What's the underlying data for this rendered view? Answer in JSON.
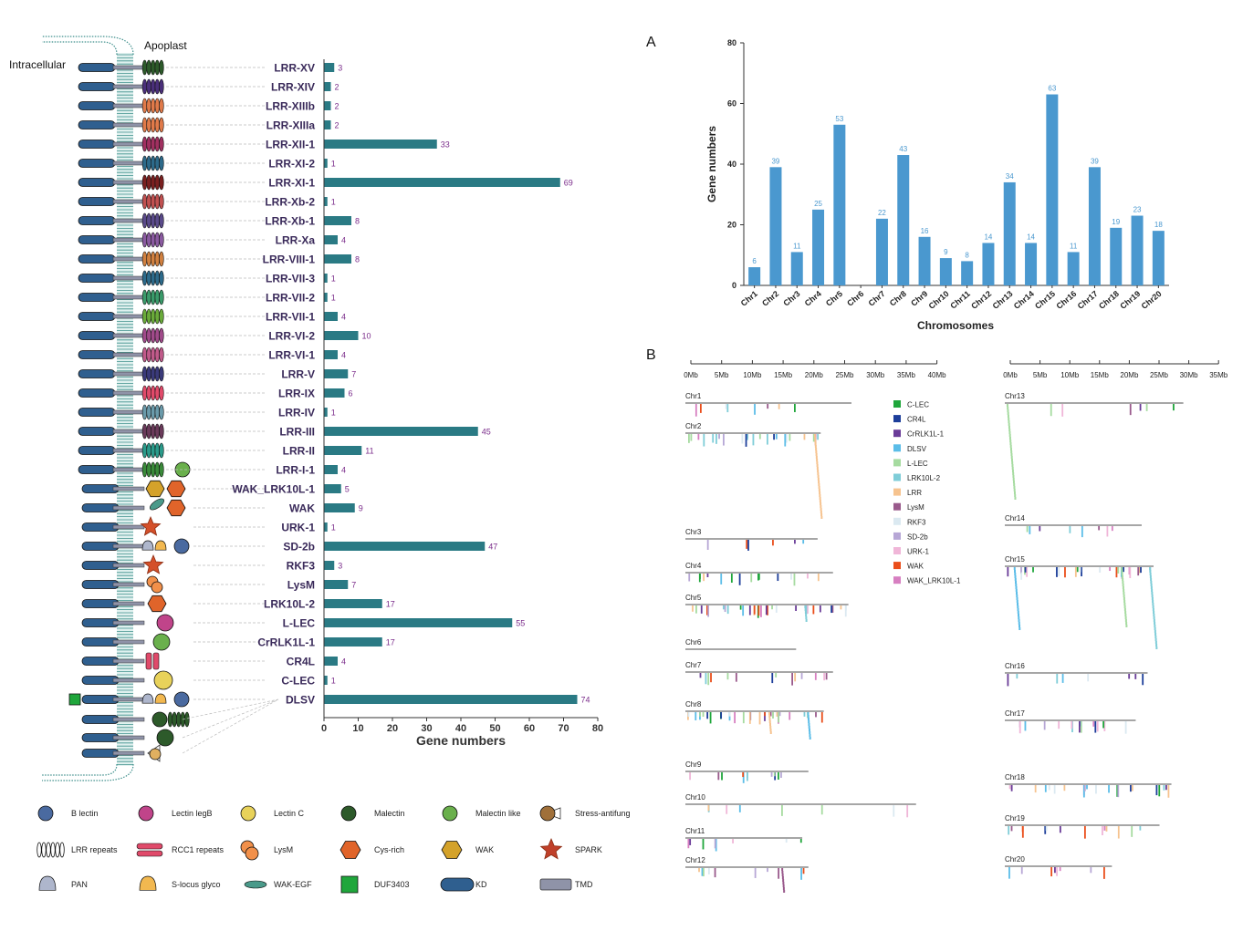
{
  "left_panel": {
    "intracellular_label": "Intracellular",
    "apoplast_label": "Apoplast",
    "bar_color": "#2a7a84",
    "value_color": "#7b2d8b",
    "chart_data": {
      "type": "bar",
      "orientation": "horizontal",
      "categories": [
        "LRR-XV",
        "LRR-XIV",
        "LRR-XIIIb",
        "LRR-XIIIa",
        "LRR-XII-1",
        "LRR-XI-2",
        "LRR-XI-1",
        "LRR-Xb-2",
        "LRR-Xb-1",
        "LRR-Xa",
        "LRR-VIII-1",
        "LRR-VII-3",
        "LRR-VII-2",
        "LRR-VII-1",
        "LRR-VI-2",
        "LRR-VI-1",
        "LRR-V",
        "LRR-IX",
        "LRR-IV",
        "LRR-III",
        "LRR-II",
        "LRR-I-1",
        "WAK_LRK10L-1",
        "WAK",
        "URK-1",
        "SD-2b",
        "RKF3",
        "LysM",
        "LRK10L-2",
        "L-LEC",
        "CrRLK1L-1",
        "CR4L",
        "C-LEC",
        "DLSV"
      ],
      "values": [
        3,
        2,
        2,
        2,
        33,
        1,
        69,
        1,
        8,
        4,
        8,
        1,
        1,
        4,
        10,
        4,
        7,
        6,
        1,
        45,
        11,
        4,
        5,
        9,
        1,
        47,
        3,
        7,
        17,
        55,
        17,
        4,
        1,
        74
      ],
      "xlabel": "Gene numbers",
      "xlim": [
        0,
        80
      ],
      "xticks": [
        "0",
        "10",
        "20",
        "30",
        "40",
        "50",
        "60",
        "70",
        "80"
      ]
    }
  },
  "legend_domains": [
    {
      "label": "B lectin",
      "icon": "b-lectin-icon"
    },
    {
      "label": "Lectin legB",
      "icon": "lectin-legb-icon"
    },
    {
      "label": "Lectin C",
      "icon": "lectin-c-icon"
    },
    {
      "label": "Malectin",
      "icon": "malectin-icon"
    },
    {
      "label": "Malectin like",
      "icon": "malectin-like-icon"
    },
    {
      "label": "Stress-antifung",
      "icon": "stress-antifung-icon"
    },
    {
      "label": "LRR repeats",
      "icon": "lrr-repeats-icon"
    },
    {
      "label": "RCC1 repeats",
      "icon": "rcc1-repeats-icon"
    },
    {
      "label": "LysM",
      "icon": "lysm-icon"
    },
    {
      "label": "Cys-rich",
      "icon": "cys-rich-icon"
    },
    {
      "label": "WAK",
      "icon": "wak-icon"
    },
    {
      "label": "SPARK",
      "icon": "spark-icon"
    },
    {
      "label": "PAN",
      "icon": "pan-icon"
    },
    {
      "label": "S-locus glyco",
      "icon": "s-locus-icon"
    },
    {
      "label": "WAK-EGF",
      "icon": "wak-egf-icon"
    },
    {
      "label": "DUF3403",
      "icon": "duf3403-icon"
    },
    {
      "label": "KD",
      "icon": "kd-icon"
    },
    {
      "label": "TMD",
      "icon": "tmd-icon"
    }
  ],
  "panel_a": {
    "letter": "A",
    "bar_color": "#4a98cf",
    "chart_data": {
      "type": "bar",
      "categories": [
        "Chr1",
        "Chr2",
        "Chr3",
        "Chr4",
        "Chr5",
        "Chr6",
        "Chr7",
        "Chr8",
        "Chr9",
        "Chr10",
        "Chr11",
        "Chr12",
        "Chr13",
        "Chr14",
        "Chr15",
        "Chr16",
        "Chr17",
        "Chr18",
        "Chr19",
        "Chr20"
      ],
      "values": [
        6,
        39,
        11,
        25,
        53,
        0,
        22,
        43,
        16,
        9,
        8,
        14,
        34,
        14,
        63,
        11,
        39,
        19,
        23,
        18
      ],
      "value_labels": [
        "6",
        "39",
        "11",
        "25",
        "53",
        "",
        "22",
        "43",
        "16",
        "9",
        "8",
        "14",
        "34",
        "14",
        "63",
        "11",
        "39",
        "19",
        "23",
        "18"
      ],
      "xlabel": "Chromosomes",
      "ylabel": "Gene numbers",
      "ylim": [
        0,
        80
      ],
      "yticks": [
        "0",
        "20",
        "40",
        "60",
        "80"
      ]
    }
  },
  "panel_b": {
    "letter": "B",
    "axis_left": [
      "0Mb",
      "5Mb",
      "10Mb",
      "15Mb",
      "20Mb",
      "25Mb",
      "30Mb",
      "35Mb",
      "40Mb"
    ],
    "axis_right": [
      "0Mb",
      "5Mb",
      "10Mb",
      "15Mb",
      "20Mb",
      "25Mb",
      "30Mb",
      "35Mb"
    ],
    "chromosomes_left": [
      {
        "name": "Chr1",
        "length_mb": 27.0
      },
      {
        "name": "Chr2",
        "length_mb": 22.0
      },
      {
        "name": "Chr3",
        "length_mb": 21.5
      },
      {
        "name": "Chr4",
        "length_mb": 24.0
      },
      {
        "name": "Chr5",
        "length_mb": 26.5
      },
      {
        "name": "Chr6",
        "length_mb": 18.0
      },
      {
        "name": "Chr7",
        "length_mb": 24.0
      },
      {
        "name": "Chr8",
        "length_mb": 22.5
      },
      {
        "name": "Chr9",
        "length_mb": 20.0
      },
      {
        "name": "Chr10",
        "length_mb": 37.5
      },
      {
        "name": "Chr11",
        "length_mb": 19.0
      },
      {
        "name": "Chr12",
        "length_mb": 20.0
      }
    ],
    "chromosomes_right": [
      {
        "name": "Chr13",
        "length_mb": 30.0
      },
      {
        "name": "Chr14",
        "length_mb": 23.0
      },
      {
        "name": "Chr15",
        "length_mb": 25.0
      },
      {
        "name": "Chr16",
        "length_mb": 24.0
      },
      {
        "name": "Chr17",
        "length_mb": 22.0
      },
      {
        "name": "Chr18",
        "length_mb": 28.0
      },
      {
        "name": "Chr19",
        "length_mb": 26.0
      },
      {
        "name": "Chr20",
        "length_mb": 18.0
      }
    ],
    "legend": [
      {
        "label": "C-LEC",
        "color": "#1fa63b"
      },
      {
        "label": "CR4L",
        "color": "#1d3e9a"
      },
      {
        "label": "CrRLK1L-1",
        "color": "#6a3c98"
      },
      {
        "label": "DLSV",
        "color": "#5bbde8"
      },
      {
        "label": "L-LEC",
        "color": "#a6dba0"
      },
      {
        "label": "LRK10L-2",
        "color": "#7fcdd8"
      },
      {
        "label": "LRR",
        "color": "#f6c38f"
      },
      {
        "label": "LysM",
        "color": "#9a5a8c"
      },
      {
        "label": "RKF3",
        "color": "#dbe9f1"
      },
      {
        "label": "SD-2b",
        "color": "#b7a7d6"
      },
      {
        "label": "URK-1",
        "color": "#f0b6d8"
      },
      {
        "label": "WAK",
        "color": "#ea4e1b"
      },
      {
        "label": "WAK_LRK10L-1",
        "color": "#d77fc1"
      }
    ]
  }
}
